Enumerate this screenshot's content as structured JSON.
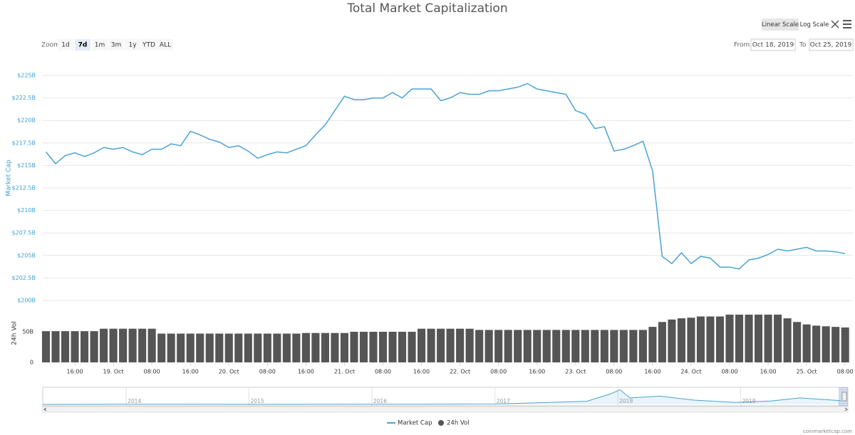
{
  "header": {
    "title": "Total Market Capitalization",
    "zoom": {
      "label": "Zoom",
      "buttons": [
        "1d",
        "7d",
        "1m",
        "3m",
        "1y",
        "YTD",
        "ALL"
      ],
      "selected": 1
    },
    "scale_buttons": [
      "Linear Scale",
      "Log Scale"
    ],
    "scale_selected": 0,
    "range": {
      "from_label": "From",
      "from": "Oct 18, 2019",
      "to_label": "To",
      "to": "Oct 25, 2019"
    }
  },
  "chart_data": [
    {
      "type": "line",
      "ylabel": "Market Cap",
      "grid": true,
      "log_scale": false,
      "xlim": [
        "2019-10-18T09:20",
        "2019-10-25T09:36"
      ],
      "ylim": [
        200,
        225
      ],
      "yticks": [
        {
          "value": 200,
          "label": "$200B"
        },
        {
          "value": 202.5,
          "label": "$202.5B"
        },
        {
          "value": 205,
          "label": "$205B"
        },
        {
          "value": 207.5,
          "label": "$207.5B"
        },
        {
          "value": 210,
          "label": "$210B"
        },
        {
          "value": 212.5,
          "label": "$212.5B"
        },
        {
          "value": 215,
          "label": "$215B"
        },
        {
          "value": 217.5,
          "label": "$217.5B"
        },
        {
          "value": 220,
          "label": "$220B"
        },
        {
          "value": 222.5,
          "label": "$222.5B"
        },
        {
          "value": 225,
          "label": "$225B"
        }
      ],
      "x": [
        "2019-10-18T10:00",
        "2019-10-18T12:00",
        "2019-10-18T14:00",
        "2019-10-18T16:00",
        "2019-10-18T18:00",
        "2019-10-18T20:00",
        "2019-10-18T22:00",
        "2019-10-19T00:00",
        "2019-10-19T02:00",
        "2019-10-19T04:00",
        "2019-10-19T06:00",
        "2019-10-19T08:00",
        "2019-10-19T10:00",
        "2019-10-19T12:00",
        "2019-10-19T14:00",
        "2019-10-19T16:00",
        "2019-10-19T18:00",
        "2019-10-19T20:00",
        "2019-10-19T22:00",
        "2019-10-20T00:00",
        "2019-10-20T02:00",
        "2019-10-20T04:00",
        "2019-10-20T06:00",
        "2019-10-20T08:00",
        "2019-10-20T10:00",
        "2019-10-20T12:00",
        "2019-10-20T14:00",
        "2019-10-20T16:00",
        "2019-10-20T18:00",
        "2019-10-20T20:00",
        "2019-10-20T22:00",
        "2019-10-21T00:00",
        "2019-10-21T02:00",
        "2019-10-21T04:00",
        "2019-10-21T06:00",
        "2019-10-21T08:00",
        "2019-10-21T10:00",
        "2019-10-21T12:00",
        "2019-10-21T14:00",
        "2019-10-21T16:00",
        "2019-10-21T18:00",
        "2019-10-21T20:00",
        "2019-10-21T22:00",
        "2019-10-22T00:00",
        "2019-10-22T02:00",
        "2019-10-22T04:00",
        "2019-10-22T06:00",
        "2019-10-22T08:00",
        "2019-10-22T10:00",
        "2019-10-22T12:00",
        "2019-10-22T14:00",
        "2019-10-22T16:00",
        "2019-10-22T18:00",
        "2019-10-22T20:00",
        "2019-10-22T22:00",
        "2019-10-23T00:00",
        "2019-10-23T02:00",
        "2019-10-23T04:00",
        "2019-10-23T06:00",
        "2019-10-23T08:00",
        "2019-10-23T10:00",
        "2019-10-23T12:00",
        "2019-10-23T14:00",
        "2019-10-23T16:00",
        "2019-10-23T18:00",
        "2019-10-23T20:00",
        "2019-10-23T22:00",
        "2019-10-24T00:00",
        "2019-10-24T02:00",
        "2019-10-24T04:00",
        "2019-10-24T06:00",
        "2019-10-24T08:00",
        "2019-10-24T10:00",
        "2019-10-24T12:00",
        "2019-10-24T14:00",
        "2019-10-24T16:00",
        "2019-10-24T18:00",
        "2019-10-24T20:00",
        "2019-10-24T22:00",
        "2019-10-25T00:00",
        "2019-10-25T02:00",
        "2019-10-25T04:00",
        "2019-10-25T06:00",
        "2019-10-25T08:00"
      ],
      "series": [
        {
          "name": "Market Cap",
          "color": "#4aa3d3",
          "values": [
            216.5,
            215.2,
            216.1,
            216.4,
            216.0,
            216.4,
            217.0,
            216.8,
            217.0,
            216.5,
            216.2,
            216.8,
            216.8,
            217.4,
            217.2,
            218.8,
            218.4,
            217.9,
            217.6,
            217.0,
            217.2,
            216.6,
            215.8,
            216.2,
            216.5,
            216.4,
            216.8,
            217.2,
            218.4,
            219.5,
            221.1,
            222.7,
            222.3,
            222.3,
            222.5,
            222.5,
            223.1,
            222.5,
            223.5,
            223.5,
            223.5,
            222.2,
            222.5,
            223.1,
            222.9,
            222.9,
            223.3,
            223.3,
            223.5,
            223.7,
            224.1,
            223.5,
            223.3,
            223.1,
            222.9,
            221.1,
            220.7,
            219.1,
            219.3,
            216.6,
            216.8,
            217.2,
            217.7,
            214.4,
            204.9,
            204.1,
            205.3,
            204.1,
            204.9,
            204.7,
            203.7,
            203.7,
            203.5,
            204.5,
            204.7,
            205.1,
            205.7,
            205.5,
            205.7,
            205.9,
            205.5,
            205.5,
            205.4,
            205.2
          ]
        }
      ]
    },
    {
      "type": "bar",
      "ylabel": "24h Vol",
      "xlim": [
        "2019-10-18T09:20",
        "2019-10-25T09:36"
      ],
      "ylim": [
        0,
        100
      ],
      "yticks": [
        0,
        {
          "value": 50,
          "label": "50B"
        }
      ],
      "xticks": [
        {
          "value": "2019-10-18T16:00",
          "label": "16:00"
        },
        {
          "value": "2019-10-19T00:00",
          "label": "19. Oct"
        },
        {
          "value": "2019-10-19T08:00",
          "label": "08:00"
        },
        {
          "value": "2019-10-19T16:00",
          "label": "16:00"
        },
        {
          "value": "2019-10-20T00:00",
          "label": "20. Oct"
        },
        {
          "value": "2019-10-20T08:00",
          "label": "08:00"
        },
        {
          "value": "2019-10-20T16:00",
          "label": "16:00"
        },
        {
          "value": "2019-10-21T00:00",
          "label": "21. Oct"
        },
        {
          "value": "2019-10-21T08:00",
          "label": "08:00"
        },
        {
          "value": "2019-10-21T16:00",
          "label": "16:00"
        },
        {
          "value": "2019-10-22T00:00",
          "label": "22. Oct"
        },
        {
          "value": "2019-10-22T08:00",
          "label": "08:00"
        },
        {
          "value": "2019-10-22T16:00",
          "label": "16:00"
        },
        {
          "value": "2019-10-23T00:00",
          "label": "23. Oct"
        },
        {
          "value": "2019-10-23T08:00",
          "label": "08:00"
        },
        {
          "value": "2019-10-23T16:00",
          "label": "16:00"
        },
        {
          "value": "2019-10-24T00:00",
          "label": "24. Oct"
        },
        {
          "value": "2019-10-24T08:00",
          "label": "08:00"
        },
        {
          "value": "2019-10-24T16:00",
          "label": "16:00"
        },
        {
          "value": "2019-10-25T00:00",
          "label": "25. Oct"
        },
        {
          "value": "2019-10-25T08:00",
          "label": "08:00"
        }
      ],
      "x": [
        "2019-10-18T10:00",
        "2019-10-18T12:00",
        "2019-10-18T14:00",
        "2019-10-18T16:00",
        "2019-10-18T18:00",
        "2019-10-18T20:00",
        "2019-10-18T22:00",
        "2019-10-19T00:00",
        "2019-10-19T02:00",
        "2019-10-19T04:00",
        "2019-10-19T06:00",
        "2019-10-19T08:00",
        "2019-10-19T10:00",
        "2019-10-19T12:00",
        "2019-10-19T14:00",
        "2019-10-19T16:00",
        "2019-10-19T18:00",
        "2019-10-19T20:00",
        "2019-10-19T22:00",
        "2019-10-20T00:00",
        "2019-10-20T02:00",
        "2019-10-20T04:00",
        "2019-10-20T06:00",
        "2019-10-20T08:00",
        "2019-10-20T10:00",
        "2019-10-20T12:00",
        "2019-10-20T14:00",
        "2019-10-20T16:00",
        "2019-10-20T18:00",
        "2019-10-20T20:00",
        "2019-10-20T22:00",
        "2019-10-21T00:00",
        "2019-10-21T02:00",
        "2019-10-21T04:00",
        "2019-10-21T06:00",
        "2019-10-21T08:00",
        "2019-10-21T10:00",
        "2019-10-21T12:00",
        "2019-10-21T14:00",
        "2019-10-21T16:00",
        "2019-10-21T18:00",
        "2019-10-21T20:00",
        "2019-10-21T22:00",
        "2019-10-22T00:00",
        "2019-10-22T02:00",
        "2019-10-22T04:00",
        "2019-10-22T06:00",
        "2019-10-22T08:00",
        "2019-10-22T10:00",
        "2019-10-22T12:00",
        "2019-10-22T14:00",
        "2019-10-22T16:00",
        "2019-10-22T18:00",
        "2019-10-22T20:00",
        "2019-10-22T22:00",
        "2019-10-23T00:00",
        "2019-10-23T02:00",
        "2019-10-23T04:00",
        "2019-10-23T06:00",
        "2019-10-23T08:00",
        "2019-10-23T10:00",
        "2019-10-23T12:00",
        "2019-10-23T14:00",
        "2019-10-23T16:00",
        "2019-10-23T18:00",
        "2019-10-23T20:00",
        "2019-10-23T22:00",
        "2019-10-24T00:00",
        "2019-10-24T02:00",
        "2019-10-24T04:00",
        "2019-10-24T06:00",
        "2019-10-24T08:00",
        "2019-10-24T10:00",
        "2019-10-24T12:00",
        "2019-10-24T14:00",
        "2019-10-24T16:00",
        "2019-10-24T18:00",
        "2019-10-24T20:00",
        "2019-10-24T22:00",
        "2019-10-25T00:00",
        "2019-10-25T02:00",
        "2019-10-25T04:00",
        "2019-10-25T06:00",
        "2019-10-25T08:00"
      ],
      "series": [
        {
          "name": "24h Vol",
          "color": "#555555",
          "values": [
            51,
            51,
            51,
            51,
            51,
            51,
            55,
            55,
            55,
            55,
            55,
            55,
            47,
            47,
            47,
            47,
            47,
            47,
            47,
            47,
            47,
            47,
            47,
            47,
            47,
            47,
            47,
            48,
            48,
            48,
            48,
            48,
            50,
            50,
            50,
            50,
            50,
            50,
            50,
            55,
            55,
            55,
            55,
            55,
            55,
            53,
            53,
            53,
            53,
            53,
            53,
            53,
            53,
            53,
            53,
            53,
            53,
            53,
            53,
            53,
            53,
            53,
            53,
            58,
            66,
            70,
            72,
            73,
            75,
            75,
            75,
            78,
            78,
            78,
            78,
            78,
            78,
            72,
            66,
            62,
            60,
            59,
            58,
            57
          ]
        }
      ]
    },
    {
      "type": "area",
      "xlim": [
        "2013-04-28",
        "2019-11-05"
      ],
      "ylim": [
        0,
        850
      ],
      "xticks": [
        {
          "value": "2014-01-01",
          "label": "2014"
        },
        {
          "value": "2015-01-01",
          "label": "2015"
        },
        {
          "value": "2016-01-01",
          "label": "2016"
        },
        {
          "value": "2017-01-01",
          "label": "2017"
        },
        {
          "value": "2018-01-01",
          "label": "2018"
        },
        {
          "value": "2019-01-01",
          "label": "2019"
        }
      ],
      "x": [
        "2013-04-28",
        "2014-01-01",
        "2014-06-01",
        "2015-01-01",
        "2016-01-01",
        "2016-06-01",
        "2017-01-01",
        "2017-06-01",
        "2017-10-01",
        "2017-12-15",
        "2018-01-07",
        "2018-02-06",
        "2018-05-05",
        "2018-08-15",
        "2018-12-15",
        "2019-04-01",
        "2019-06-26",
        "2019-09-01",
        "2019-10-25"
      ],
      "series": [
        {
          "color": "#4aa3d3",
          "values": [
            1.5,
            10,
            8,
            5,
            7,
            12,
            18,
            100,
            170,
            600,
            800,
            350,
            450,
            230,
            110,
            180,
            350,
            270,
            205
          ]
        }
      ]
    }
  ],
  "credit": "coinmarketcap.com"
}
